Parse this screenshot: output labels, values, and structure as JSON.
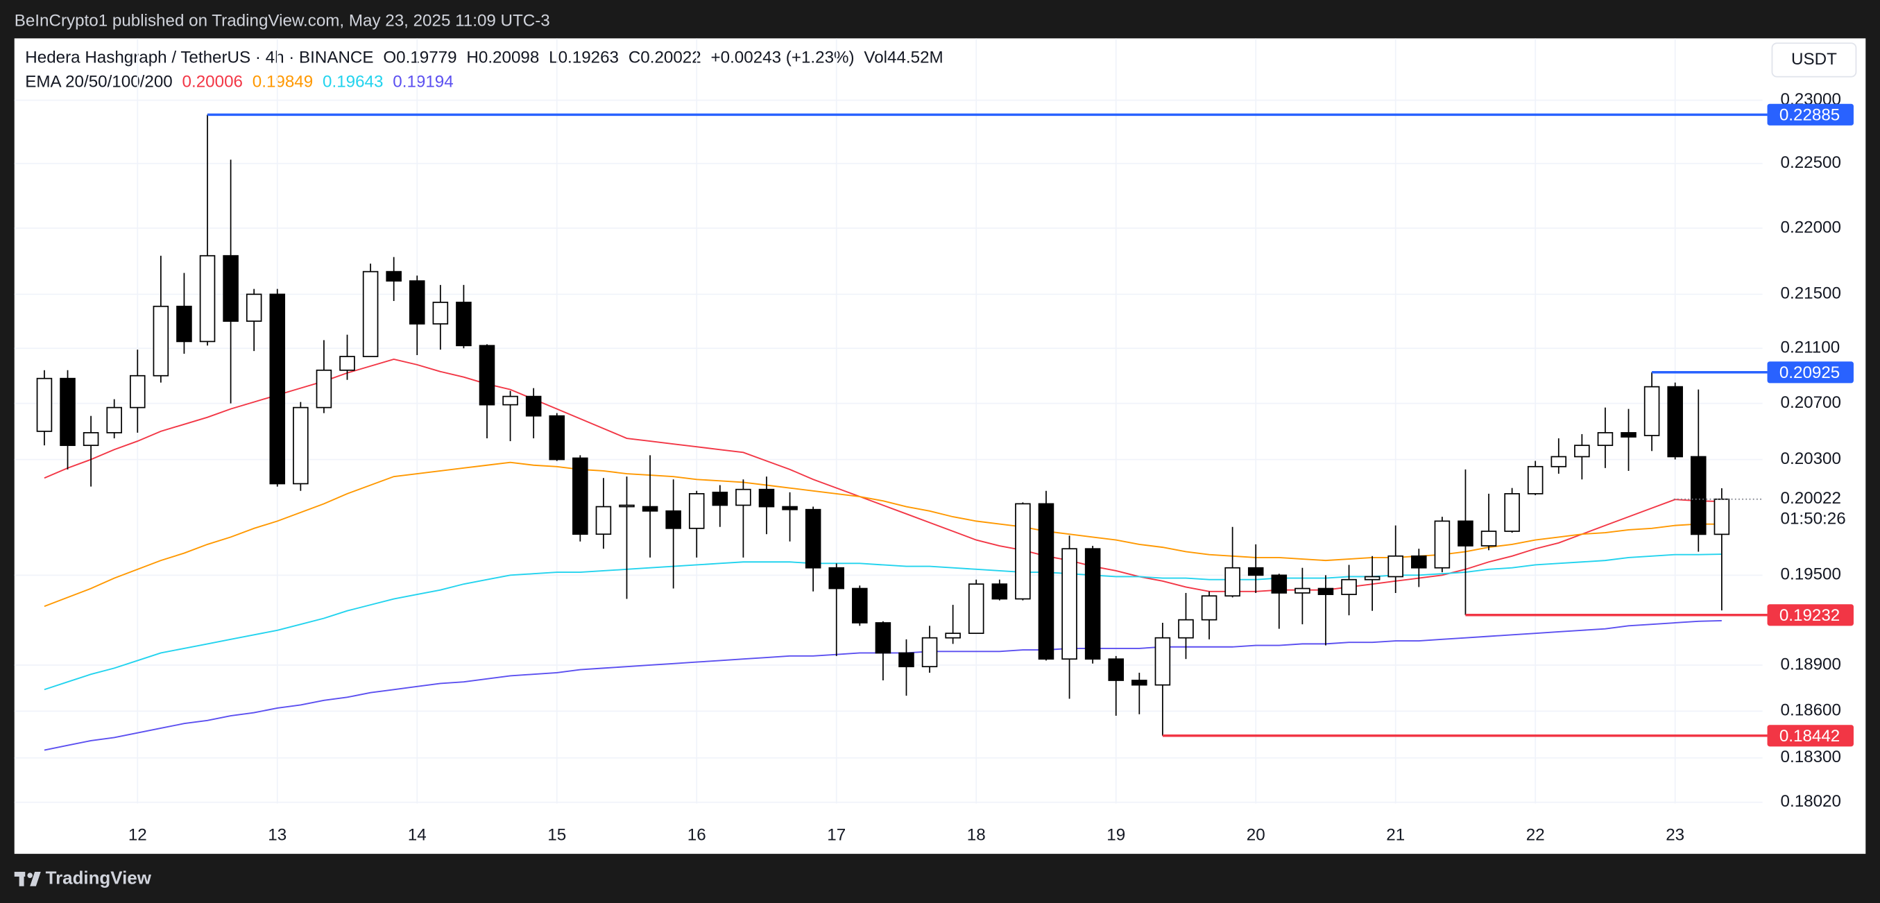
{
  "header": {
    "published": "BeInCrypto1 published on TradingView.com, May 23, 2025 11:09 UTC-3",
    "symbol": "Hedera Hashgraph / TetherUS · 4h · BINANCE",
    "open_label": "O",
    "high_label": "H",
    "low_label": "L",
    "close_label": "C",
    "change": "+0.00243 (+1.23%)",
    "volume_label": "Vol",
    "volume": "44.52M",
    "ema_label": "EMA 20/50/100/200",
    "currency": "USDT",
    "brand": "TradingView"
  },
  "chart_data": {
    "type": "candlestick",
    "categories": [
      null,
      null,
      null,
      null,
      "12",
      null,
      null,
      null,
      null,
      null,
      "13",
      null,
      null,
      null,
      null,
      null,
      "14",
      null,
      null,
      null,
      null,
      null,
      "15",
      null,
      null,
      null,
      null,
      null,
      "16",
      null,
      null,
      null,
      null,
      null,
      "17",
      null,
      null,
      null,
      null,
      null,
      "18",
      null,
      null,
      null,
      null,
      null,
      "19",
      null,
      null,
      null,
      null,
      null,
      "20",
      null,
      null,
      null,
      null,
      null,
      "21",
      null,
      null,
      null,
      null,
      null,
      "22",
      null,
      null,
      null,
      null,
      null,
      "23",
      null,
      null
    ],
    "open": [
      0.205,
      0.2088,
      0.204,
      0.2049,
      0.2067,
      0.209,
      0.2141,
      0.2115,
      0.2179,
      0.213,
      0.215,
      0.2013,
      0.2067,
      0.2094,
      0.2104,
      0.2167,
      0.216,
      0.2128,
      0.2144,
      0.2112,
      0.2069,
      0.2075,
      0.2061,
      0.2031,
      0.1978,
      0.1997,
      0.1997,
      0.1994,
      0.1982,
      0.2007,
      0.1998,
      0.2009,
      0.1997,
      0.1995,
      0.1955,
      0.1941,
      0.1918,
      0.1898,
      0.1889,
      0.1908,
      0.1911,
      0.1944,
      0.1934,
      0.1999,
      0.1894,
      0.1968,
      0.1894,
      0.188,
      0.1877,
      0.1908,
      0.192,
      0.1936,
      0.1955,
      0.195,
      0.1938,
      0.1941,
      0.1937,
      0.1947,
      0.1949,
      0.1963,
      0.1955,
      0.1987,
      0.197,
      0.198,
      0.2006,
      0.2025,
      0.2032,
      0.204,
      0.2049,
      0.2047,
      0.2082,
      0.2032,
      0.19779
    ],
    "high": [
      0.2094,
      0.2094,
      0.2061,
      0.2073,
      0.2109,
      0.2179,
      0.2166,
      0.22885,
      0.2253,
      0.2154,
      0.2154,
      0.2071,
      0.2116,
      0.212,
      0.2173,
      0.2178,
      0.2164,
      0.2157,
      0.2157,
      0.2113,
      0.2079,
      0.2081,
      0.2063,
      0.2033,
      0.2017,
      0.2018,
      0.2033,
      0.2016,
      0.2008,
      0.2012,
      0.2016,
      0.2018,
      0.2007,
      0.1997,
      0.1958,
      0.1943,
      0.1919,
      0.1907,
      0.1916,
      0.193,
      0.1947,
      0.1947,
      0.2,
      0.2008,
      0.1977,
      0.197,
      0.1896,
      0.1885,
      0.1918,
      0.1938,
      0.1939,
      0.1983,
      0.1971,
      0.1951,
      0.1955,
      0.195,
      0.1957,
      0.1963,
      0.1984,
      0.1968,
      0.199,
      0.2023,
      0.2006,
      0.201,
      0.2029,
      0.2045,
      0.2048,
      0.2067,
      0.2066,
      0.20925,
      0.2085,
      0.208,
      0.20098
    ],
    "low": [
      0.204,
      0.2023,
      0.2011,
      0.2045,
      0.2049,
      0.2085,
      0.2106,
      0.2112,
      0.207,
      0.2108,
      0.2011,
      0.2008,
      0.2063,
      0.2087,
      0.2104,
      0.2145,
      0.2105,
      0.2109,
      0.211,
      0.2045,
      0.2043,
      0.2045,
      0.2029,
      0.1973,
      0.1968,
      0.1934,
      0.1962,
      0.1941,
      0.1962,
      0.1983,
      0.1962,
      0.1978,
      0.1973,
      0.1939,
      0.1896,
      0.1916,
      0.188,
      0.187,
      0.1885,
      0.1904,
      0.1911,
      0.1933,
      0.1933,
      0.1893,
      0.1868,
      0.1891,
      0.1857,
      0.1858,
      0.18442,
      0.1894,
      0.1907,
      0.1935,
      0.1938,
      0.1914,
      0.1917,
      0.1903,
      0.1923,
      0.1926,
      0.1938,
      0.1942,
      0.1952,
      0.19232,
      0.1967,
      0.1979,
      0.2005,
      0.202,
      0.2016,
      0.2024,
      0.2022,
      0.2036,
      0.203,
      0.1966,
      0.19263
    ],
    "close": [
      0.2088,
      0.204,
      0.2049,
      0.2067,
      0.209,
      0.2141,
      0.2115,
      0.2179,
      0.213,
      0.215,
      0.2013,
      0.2067,
      0.2094,
      0.2104,
      0.2167,
      0.216,
      0.2128,
      0.2144,
      0.2112,
      0.2069,
      0.2075,
      0.2061,
      0.203,
      0.1978,
      0.1997,
      0.1998,
      0.1994,
      0.1982,
      0.2006,
      0.1998,
      0.2009,
      0.1997,
      0.1995,
      0.1955,
      0.1941,
      0.1918,
      0.1898,
      0.1889,
      0.1908,
      0.1911,
      0.1944,
      0.1934,
      0.1999,
      0.1894,
      0.1968,
      0.1894,
      0.188,
      0.1877,
      0.1908,
      0.192,
      0.1936,
      0.1955,
      0.195,
      0.1938,
      0.1941,
      0.1937,
      0.1947,
      0.1949,
      0.1963,
      0.1955,
      0.1987,
      0.197,
      0.198,
      0.2006,
      0.2025,
      0.2032,
      0.204,
      0.2049,
      0.2046,
      0.2082,
      0.2032,
      0.19779,
      0.20022
    ],
    "up_color": "#ffffff",
    "down_color": "#000000",
    "border_color": "#000000",
    "series": [
      {
        "color": "#f23645",
        "values": [
          0.2017,
          0.2024,
          0.203,
          0.2037,
          0.2043,
          0.205,
          0.2055,
          0.206,
          0.2066,
          0.2071,
          0.2076,
          0.2081,
          0.2086,
          0.2092,
          0.2097,
          0.2102,
          0.2098,
          0.2093,
          0.2089,
          0.2084,
          0.208,
          0.2073,
          0.2066,
          0.2059,
          0.2052,
          0.2045,
          0.2043,
          0.2041,
          0.2039,
          0.2037,
          0.2035,
          0.2029,
          0.2023,
          0.2016,
          0.201,
          0.2004,
          0.1998,
          0.1992,
          0.1986,
          0.198,
          0.1974,
          0.197,
          0.1967,
          0.1963,
          0.196,
          0.1956,
          0.1953,
          0.1949,
          0.1946,
          0.1942,
          0.1939,
          0.1939,
          0.1939,
          0.194,
          0.194,
          0.194,
          0.1942,
          0.1944,
          0.1946,
          0.1948,
          0.195,
          0.1954,
          0.1959,
          0.1963,
          0.1968,
          0.1972,
          0.1978,
          0.1984,
          0.199,
          0.1996,
          0.2002,
          0.2001,
          0.20006
        ]
      },
      {
        "color": "#ff9800",
        "values": [
          0.1929,
          0.1935,
          0.1941,
          0.1948,
          0.1954,
          0.196,
          0.1965,
          0.1971,
          0.1976,
          0.1982,
          0.1987,
          0.1993,
          0.1999,
          0.2006,
          0.2012,
          0.2018,
          0.202,
          0.2022,
          0.2024,
          0.2026,
          0.2028,
          0.2026,
          0.2025,
          0.2023,
          0.2022,
          0.202,
          0.2019,
          0.2018,
          0.2016,
          0.2015,
          0.2014,
          0.2012,
          0.201,
          0.2008,
          0.2006,
          0.2004,
          0.2001,
          0.1997,
          0.1994,
          0.199,
          0.1987,
          0.1985,
          0.1983,
          0.198,
          0.1978,
          0.1976,
          0.1974,
          0.1971,
          0.1969,
          0.1966,
          0.1964,
          0.1963,
          0.1962,
          0.1962,
          0.1961,
          0.196,
          0.1961,
          0.1962,
          0.1962,
          0.1963,
          0.1964,
          0.1966,
          0.1969,
          0.1971,
          0.1974,
          0.1976,
          0.1978,
          0.1979,
          0.1981,
          0.1982,
          0.1984,
          0.1985,
          0.19849
        ]
      },
      {
        "color": "#22d3ee",
        "values": [
          0.1874,
          0.1879,
          0.1884,
          0.1888,
          0.1893,
          0.1898,
          0.1901,
          0.1904,
          0.1907,
          0.191,
          0.1913,
          0.1917,
          0.1921,
          0.1926,
          0.193,
          0.1934,
          0.1937,
          0.194,
          0.1944,
          0.1947,
          0.195,
          0.1951,
          0.1952,
          0.1952,
          0.1953,
          0.1954,
          0.1955,
          0.1956,
          0.1957,
          0.1958,
          0.1959,
          0.1959,
          0.1959,
          0.1958,
          0.1958,
          0.1958,
          0.1957,
          0.1956,
          0.1956,
          0.1955,
          0.1954,
          0.1953,
          0.1952,
          0.1952,
          0.1951,
          0.195,
          0.1949,
          0.1949,
          0.1948,
          0.1948,
          0.1947,
          0.1947,
          0.1947,
          0.1948,
          0.1948,
          0.1948,
          0.1949,
          0.1949,
          0.195,
          0.195,
          0.1951,
          0.1952,
          0.1954,
          0.1955,
          0.1957,
          0.1958,
          0.1959,
          0.196,
          0.1962,
          0.1963,
          0.1964,
          0.1964,
          0.19643
        ]
      },
      {
        "color": "#5b4ff0",
        "values": [
          0.1835,
          0.1838,
          0.1841,
          0.1843,
          0.1846,
          0.1849,
          0.1852,
          0.1854,
          0.1857,
          0.1859,
          0.1862,
          0.1864,
          0.1867,
          0.1869,
          0.1872,
          0.1874,
          0.1876,
          0.1878,
          0.1879,
          0.1881,
          0.1883,
          0.1884,
          0.1885,
          0.1887,
          0.1888,
          0.1889,
          0.189,
          0.1891,
          0.1892,
          0.1893,
          0.1894,
          0.1895,
          0.1896,
          0.1896,
          0.1897,
          0.1898,
          0.1898,
          0.1898,
          0.1899,
          0.1899,
          0.1899,
          0.1899,
          0.19,
          0.19,
          0.1901,
          0.1901,
          0.1901,
          0.1901,
          0.1902,
          0.1902,
          0.1902,
          0.1902,
          0.1903,
          0.1903,
          0.1904,
          0.1904,
          0.1905,
          0.1905,
          0.1906,
          0.1906,
          0.1907,
          0.1908,
          0.1909,
          0.191,
          0.1911,
          0.1912,
          0.1913,
          0.1914,
          0.1916,
          0.1917,
          0.1918,
          0.1919,
          0.19194
        ]
      }
    ],
    "ylim": [
      0.177,
      0.235
    ],
    "log_scale": true,
    "grid": true,
    "yticks": [
      {
        "value": 0.23,
        "label": "0.23000"
      },
      {
        "value": 0.225,
        "label": "0.22500"
      },
      {
        "value": 0.22,
        "label": "0.22000"
      },
      {
        "value": 0.215,
        "label": "0.21500"
      },
      {
        "value": 0.211,
        "label": "0.21100"
      },
      {
        "value": 0.207,
        "label": "0.20700"
      },
      {
        "value": 0.203,
        "label": "0.20300"
      },
      {
        "value": 0.195,
        "label": "0.19500"
      },
      {
        "value": 0.189,
        "label": "0.18900"
      },
      {
        "value": 0.186,
        "label": "0.18600"
      },
      {
        "value": 0.183,
        "label": "0.18300"
      },
      {
        "value": 0.1802,
        "label": "0.18020"
      }
    ],
    "levels": [
      {
        "value": 0.22885,
        "color": "#2962ff"
      },
      {
        "value": 0.20925,
        "color": "#2962ff"
      },
      {
        "value": 0.19232,
        "color": "#f23645"
      },
      {
        "value": 0.18442,
        "color": "#f23645"
      }
    ],
    "countdown": "01:50:26"
  }
}
